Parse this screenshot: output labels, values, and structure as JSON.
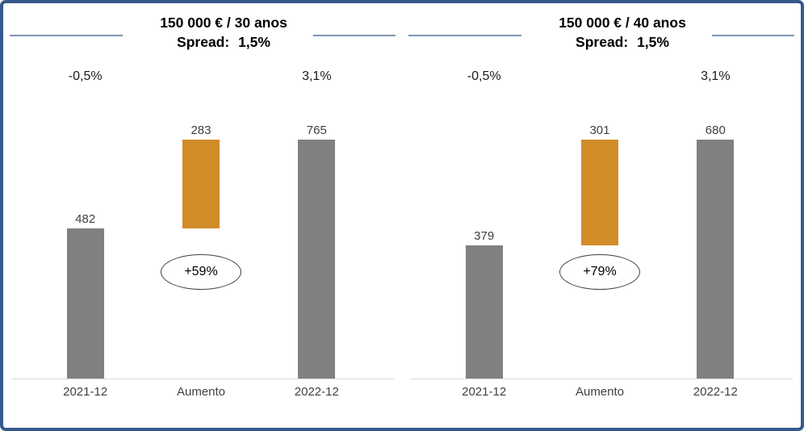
{
  "frame": {
    "background": "#FFFFFF",
    "border_color": "#36598C",
    "title_line_color": "#7E96B4",
    "axis_line_color": "#D9D9D9"
  },
  "chart_data": [
    {
      "type": "bar",
      "variant": "waterfall",
      "title": "150 000 € / 30 anos",
      "subtitle": "Spread: 1,5%",
      "rate_2021_12": "-0,5%",
      "rate_2022_12": "3,1%",
      "categories": [
        "2021-12",
        "Aumento",
        "2022-12"
      ],
      "values": [
        482,
        283,
        765
      ],
      "increase_label": "+59%",
      "colors": {
        "base": "#808080",
        "increase": "#D28C28"
      },
      "ylim": [
        0,
        765
      ],
      "grid": false,
      "legend": false
    },
    {
      "type": "bar",
      "variant": "waterfall",
      "title": "150 000 € / 40 anos",
      "subtitle": "Spread: 1,5%",
      "rate_2021_12": "-0,5%",
      "rate_2022_12": "3,1%",
      "categories": [
        "2021-12",
        "Aumento",
        "2022-12"
      ],
      "values": [
        379,
        301,
        680
      ],
      "increase_label": "+79%",
      "colors": {
        "base": "#808080",
        "increase": "#D28C28"
      },
      "ylim": [
        0,
        680
      ],
      "grid": false,
      "legend": false
    }
  ]
}
